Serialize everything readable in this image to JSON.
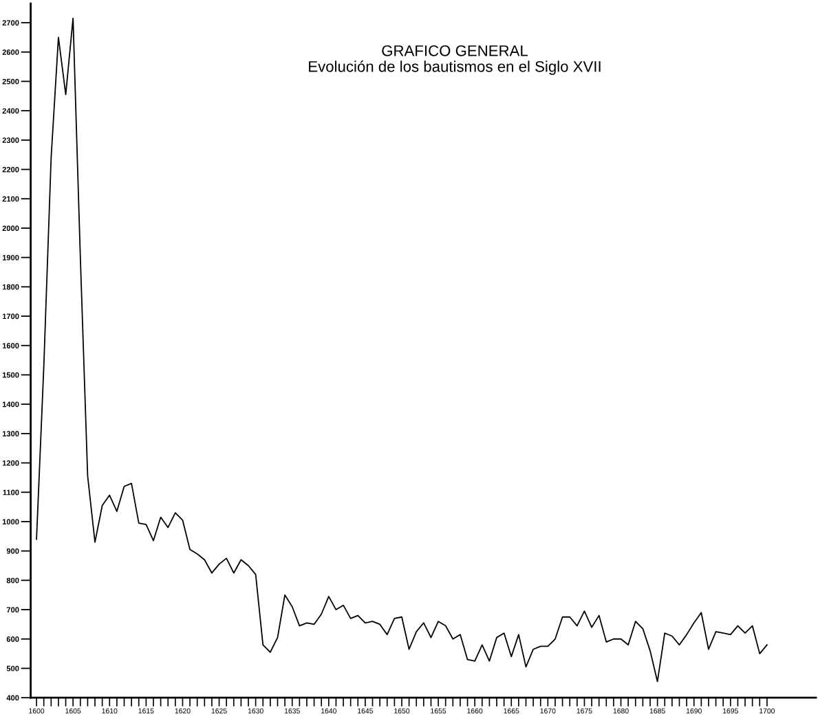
{
  "chart_data": {
    "type": "line",
    "title": "GRAFICO GENERAL",
    "subtitle": "Evolución de los bautismos en el Siglo XVII",
    "x": [
      1600,
      1601,
      1602,
      1603,
      1604,
      1605,
      1606,
      1607,
      1608,
      1609,
      1610,
      1611,
      1612,
      1613,
      1614,
      1615,
      1616,
      1617,
      1618,
      1619,
      1620,
      1621,
      1622,
      1623,
      1624,
      1625,
      1626,
      1627,
      1628,
      1629,
      1630,
      1631,
      1632,
      1633,
      1634,
      1635,
      1636,
      1637,
      1638,
      1639,
      1640,
      1641,
      1642,
      1643,
      1644,
      1645,
      1646,
      1647,
      1648,
      1649,
      1650,
      1651,
      1652,
      1653,
      1654,
      1655,
      1656,
      1657,
      1658,
      1659,
      1660,
      1661,
      1662,
      1663,
      1664,
      1665,
      1666,
      1667,
      1668,
      1669,
      1670,
      1671,
      1672,
      1673,
      1674,
      1675,
      1676,
      1677,
      1678,
      1679,
      1680,
      1681,
      1682,
      1683,
      1684,
      1685,
      1686,
      1687,
      1688,
      1689,
      1690,
      1691,
      1692,
      1693,
      1694,
      1695,
      1696,
      1697,
      1698,
      1699,
      1700
    ],
    "series": [
      {
        "color": "#000000",
        "values": [
          940,
          1530,
          2240,
          2650,
          2455,
          2715,
          1900,
          1155,
          930,
          1055,
          1090,
          1035,
          1120,
          1130,
          995,
          990,
          935,
          1015,
          980,
          1030,
          1005,
          905,
          890,
          870,
          825,
          855,
          875,
          825,
          870,
          850,
          820,
          580,
          555,
          605,
          750,
          710,
          645,
          655,
          650,
          685,
          745,
          700,
          715,
          670,
          680,
          655,
          660,
          650,
          615,
          670,
          675,
          565,
          625,
          655,
          605,
          660,
          645,
          600,
          615,
          530,
          525,
          580,
          525,
          605,
          620,
          540,
          615,
          505,
          565,
          575,
          575,
          600,
          675,
          675,
          645,
          695,
          640,
          680,
          590,
          600,
          600,
          580,
          660,
          635,
          560,
          455,
          620,
          610,
          580,
          615,
          655,
          690,
          565,
          625,
          620,
          615,
          645,
          620,
          645,
          550,
          580
        ]
      }
    ],
    "xlim": [
      1599.2,
      1706.7
    ],
    "ylim": [
      400,
      2765
    ],
    "xticks": [
      1600,
      {
        "value": 1601,
        "label": null
      },
      {
        "value": 1602,
        "label": null
      },
      {
        "value": 1603,
        "label": null
      },
      {
        "value": 1604,
        "label": null
      },
      1605,
      {
        "value": 1606,
        "label": null
      },
      {
        "value": 1607,
        "label": null
      },
      {
        "value": 1608,
        "label": null
      },
      {
        "value": 1609,
        "label": null
      },
      1610,
      {
        "value": 1611,
        "label": null
      },
      {
        "value": 1612,
        "label": null
      },
      {
        "value": 1613,
        "label": null
      },
      {
        "value": 1614,
        "label": null
      },
      1615,
      {
        "value": 1616,
        "label": null
      },
      {
        "value": 1617,
        "label": null
      },
      {
        "value": 1618,
        "label": null
      },
      {
        "value": 1619,
        "label": null
      },
      1620,
      {
        "value": 1621,
        "label": null
      },
      {
        "value": 1622,
        "label": null
      },
      {
        "value": 1623,
        "label": null
      },
      {
        "value": 1624,
        "label": null
      },
      1625,
      {
        "value": 1626,
        "label": null
      },
      {
        "value": 1627,
        "label": null
      },
      {
        "value": 1628,
        "label": null
      },
      {
        "value": 1629,
        "label": null
      },
      1630,
      {
        "value": 1631,
        "label": null
      },
      {
        "value": 1632,
        "label": null
      },
      {
        "value": 1633,
        "label": null
      },
      {
        "value": 1634,
        "label": null
      },
      1635,
      {
        "value": 1636,
        "label": null
      },
      {
        "value": 1637,
        "label": null
      },
      {
        "value": 1638,
        "label": null
      },
      {
        "value": 1639,
        "label": null
      },
      1640,
      {
        "value": 1641,
        "label": null
      },
      {
        "value": 1642,
        "label": null
      },
      {
        "value": 1643,
        "label": null
      },
      {
        "value": 1644,
        "label": null
      },
      1645,
      {
        "value": 1646,
        "label": null
      },
      {
        "value": 1647,
        "label": null
      },
      {
        "value": 1648,
        "label": null
      },
      {
        "value": 1649,
        "label": null
      },
      1650,
      {
        "value": 1651,
        "label": null
      },
      {
        "value": 1652,
        "label": null
      },
      {
        "value": 1653,
        "label": null
      },
      {
        "value": 1654,
        "label": null
      },
      1655,
      {
        "value": 1656,
        "label": null
      },
      {
        "value": 1657,
        "label": null
      },
      {
        "value": 1658,
        "label": null
      },
      {
        "value": 1659,
        "label": null
      },
      1660,
      {
        "value": 1661,
        "label": null
      },
      {
        "value": 1662,
        "label": null
      },
      {
        "value": 1663,
        "label": null
      },
      {
        "value": 1664,
        "label": null
      },
      1665,
      {
        "value": 1666,
        "label": null
      },
      {
        "value": 1667,
        "label": null
      },
      {
        "value": 1668,
        "label": null
      },
      {
        "value": 1669,
        "label": null
      },
      1670,
      {
        "value": 1671,
        "label": null
      },
      {
        "value": 1672,
        "label": null
      },
      {
        "value": 1673,
        "label": null
      },
      {
        "value": 1674,
        "label": null
      },
      1675,
      {
        "value": 1676,
        "label": null
      },
      {
        "value": 1677,
        "label": null
      },
      {
        "value": 1678,
        "label": null
      },
      {
        "value": 1679,
        "label": null
      },
      1680,
      {
        "value": 1681,
        "label": null
      },
      {
        "value": 1682,
        "label": null
      },
      {
        "value": 1683,
        "label": null
      },
      {
        "value": 1684,
        "label": null
      },
      1685,
      {
        "value": 1686,
        "label": null
      },
      {
        "value": 1687,
        "label": null
      },
      {
        "value": 1688,
        "label": null
      },
      {
        "value": 1689,
        "label": null
      },
      1690,
      {
        "value": 1691,
        "label": null
      },
      {
        "value": 1692,
        "label": null
      },
      {
        "value": 1693,
        "label": null
      },
      {
        "value": 1694,
        "label": null
      },
      1695,
      {
        "value": 1696,
        "label": null
      },
      {
        "value": 1697,
        "label": null
      },
      {
        "value": 1698,
        "label": null
      },
      {
        "value": 1699,
        "label": null
      },
      1700
    ],
    "yticks": [
      400,
      500,
      600,
      700,
      800,
      900,
      1000,
      1100,
      1200,
      1300,
      1400,
      1500,
      1600,
      1700,
      1800,
      1900,
      2000,
      2100,
      2200,
      2300,
      2400,
      2500,
      2600,
      2700
    ],
    "grid": false,
    "legend": false,
    "marker": "none",
    "line_style": "solid"
  }
}
